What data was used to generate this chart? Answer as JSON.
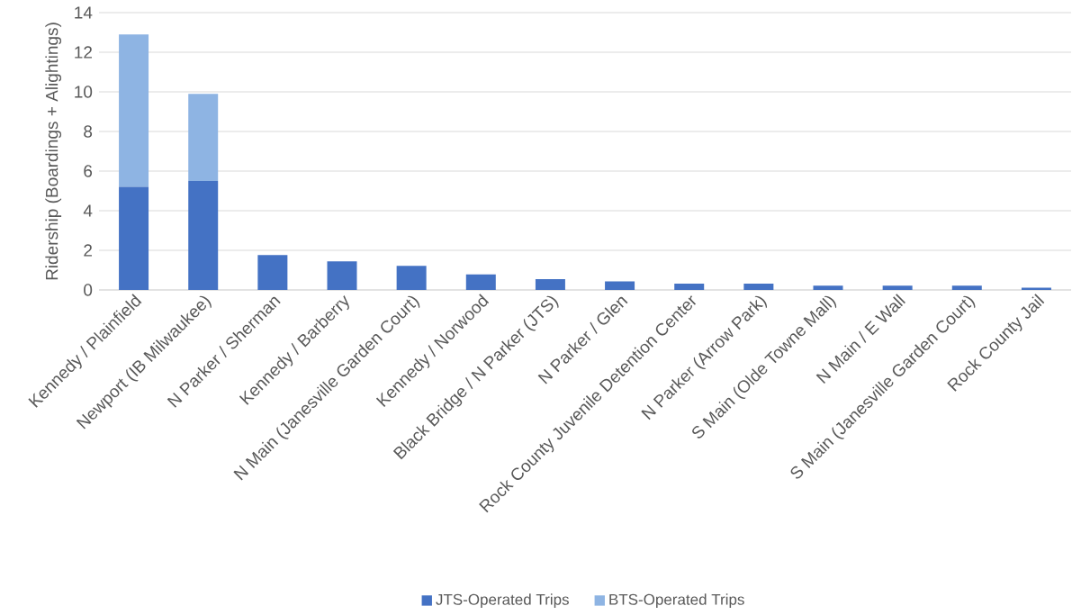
{
  "chart_data": {
    "type": "bar",
    "stacked": true,
    "ylabel": "Ridership (Boardings + Alightings)",
    "categories": [
      "Kennedy / Plainfield",
      "Newport (IB Milwaukee)",
      "N Parker / Sherman",
      "Kennedy / Barberry",
      "N Main (Janesville Garden Court)",
      "Kennedy / Norwood",
      "Black Bridge / N Parker (JTS)",
      "N Parker / Glen",
      "Rock County Juvenile Detention Center",
      "N Parker (Arrow Park)",
      "S Main (Olde Towne Mall)",
      "N Main / E Wall",
      "S Main (Janesville Garden Court)",
      "Rock County Jail"
    ],
    "series": [
      {
        "name": "JTS-Operated Trips",
        "color": "#4472c4",
        "values": [
          5.2,
          5.5,
          1.76,
          1.44,
          1.22,
          0.78,
          0.54,
          0.43,
          0.32,
          0.32,
          0.22,
          0.22,
          0.22,
          0.11
        ]
      },
      {
        "name": "BTS-Operated Trips",
        "color": "#8eb4e3",
        "values": [
          7.7,
          4.4,
          null,
          null,
          null,
          null,
          null,
          null,
          null,
          null,
          null,
          null,
          null,
          null
        ]
      }
    ],
    "ylim": [
      0,
      14
    ],
    "yticks": [
      0,
      2,
      4,
      6,
      8,
      10,
      12,
      14
    ],
    "grid": "y",
    "legend": "bottom"
  }
}
